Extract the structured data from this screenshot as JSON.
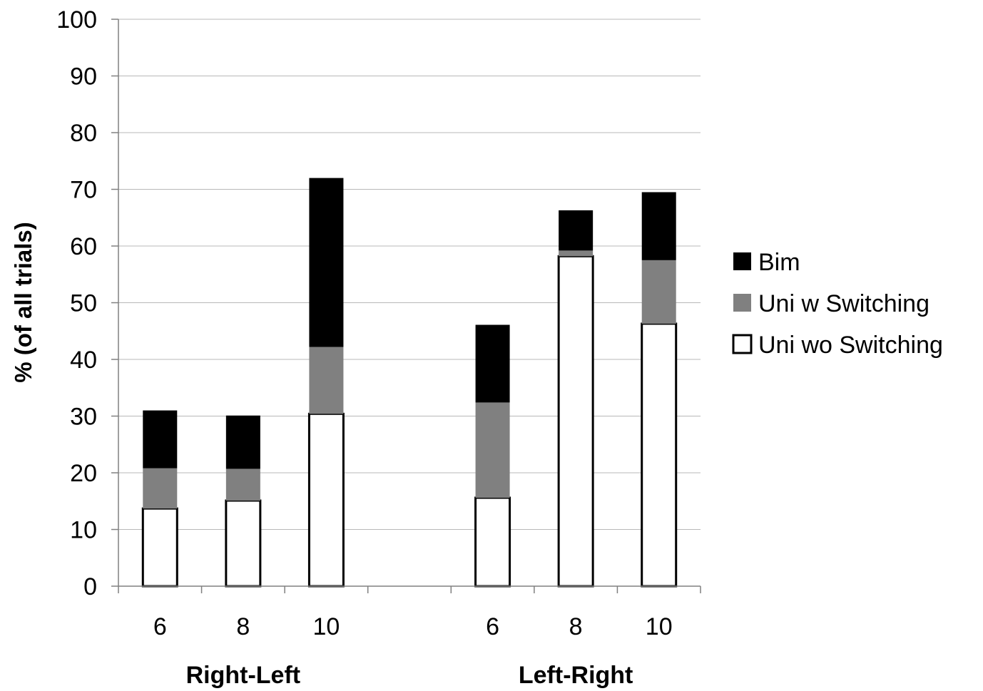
{
  "chart_data": {
    "type": "bar",
    "stacked": true,
    "ylabel": "% (of all trials)",
    "xlabel": "",
    "ylim": [
      0,
      100
    ],
    "yticks": [
      0,
      10,
      20,
      30,
      40,
      50,
      60,
      70,
      80,
      90,
      100
    ],
    "grid": true,
    "legend_position": "right",
    "groups": [
      {
        "label": "Right-Left",
        "categories": [
          "6",
          "8",
          "10"
        ]
      },
      {
        "label": "Left-Right",
        "categories": [
          "6",
          "8",
          "10"
        ]
      }
    ],
    "series": [
      {
        "name": "Uni wo Switching",
        "color": "#ffffff",
        "values": [
          13.7,
          15.1,
          30.4,
          15.6,
          58.2,
          46.3
        ]
      },
      {
        "name": "Uni w Switching",
        "color": "#808080",
        "values": [
          7.1,
          5.6,
          11.8,
          16.8,
          1.0,
          11.2
        ]
      },
      {
        "name": "Bim",
        "color": "#000000",
        "values": [
          10.2,
          9.4,
          29.8,
          13.7,
          7.1,
          12.0
        ]
      }
    ],
    "legend_order": [
      "Bim",
      "Uni w Switching",
      "Uni wo Switching"
    ]
  }
}
